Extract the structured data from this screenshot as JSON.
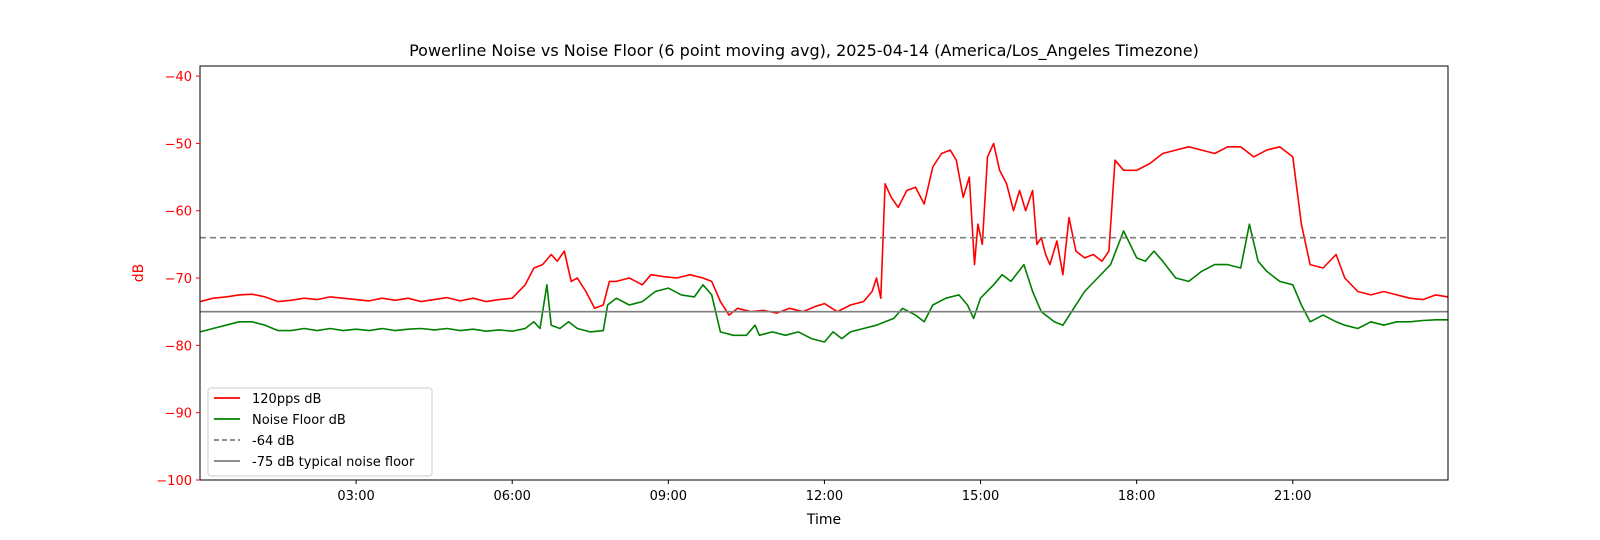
{
  "chart_data": {
    "type": "line",
    "title": "Powerline Noise vs Noise Floor (6 point moving avg), 2025-04-14 (America/Los_Angeles Timezone)",
    "xlabel": "Time",
    "ylabel": "dB",
    "xlim": [
      "00:00",
      "23:59"
    ],
    "ylim": [
      -100,
      -38.5
    ],
    "x_ticks": [
      "03:00",
      "06:00",
      "09:00",
      "12:00",
      "15:00",
      "18:00",
      "21:00"
    ],
    "y_ticks": [
      -40,
      -50,
      -60,
      -70,
      -80,
      -90,
      -100
    ],
    "grid": false,
    "legend_position": "lower-left",
    "colors": {
      "signal": "#ff0000",
      "noise_floor": "#008000",
      "threshold": "#7f7f7f",
      "typical_floor": "#7f7f7f",
      "ylabel_and_ticks": "#ff0000"
    },
    "series": [
      {
        "name": "120pps dB",
        "color": "#ff0000",
        "points": [
          [
            "00:00",
            -73.5
          ],
          [
            "00:15",
            -73.0
          ],
          [
            "00:30",
            -72.8
          ],
          [
            "00:45",
            -72.5
          ],
          [
            "01:00",
            -72.4
          ],
          [
            "01:15",
            -72.8
          ],
          [
            "01:30",
            -73.5
          ],
          [
            "01:45",
            -73.3
          ],
          [
            "02:00",
            -73.0
          ],
          [
            "02:15",
            -73.2
          ],
          [
            "02:30",
            -72.8
          ],
          [
            "02:45",
            -73.0
          ],
          [
            "03:00",
            -73.2
          ],
          [
            "03:15",
            -73.4
          ],
          [
            "03:30",
            -73.0
          ],
          [
            "03:45",
            -73.3
          ],
          [
            "04:00",
            -73.0
          ],
          [
            "04:15",
            -73.5
          ],
          [
            "04:30",
            -73.2
          ],
          [
            "04:45",
            -72.9
          ],
          [
            "05:00",
            -73.4
          ],
          [
            "05:15",
            -73.0
          ],
          [
            "05:30",
            -73.5
          ],
          [
            "05:45",
            -73.2
          ],
          [
            "06:00",
            -73.0
          ],
          [
            "06:15",
            -71.0
          ],
          [
            "06:25",
            -68.5
          ],
          [
            "06:35",
            -68.0
          ],
          [
            "06:45",
            -66.5
          ],
          [
            "06:52",
            -67.5
          ],
          [
            "07:00",
            -66.0
          ],
          [
            "07:08",
            -70.5
          ],
          [
            "07:15",
            -70.0
          ],
          [
            "07:25",
            -72.0
          ],
          [
            "07:35",
            -74.5
          ],
          [
            "07:45",
            -74.0
          ],
          [
            "07:52",
            -70.5
          ],
          [
            "08:00",
            -70.5
          ],
          [
            "08:15",
            -70.0
          ],
          [
            "08:30",
            -71.0
          ],
          [
            "08:40",
            -69.5
          ],
          [
            "08:55",
            -69.8
          ],
          [
            "09:10",
            -70.0
          ],
          [
            "09:25",
            -69.5
          ],
          [
            "09:40",
            -70.0
          ],
          [
            "09:50",
            -70.5
          ],
          [
            "10:00",
            -73.5
          ],
          [
            "10:10",
            -75.5
          ],
          [
            "10:20",
            -74.5
          ],
          [
            "10:35",
            -75.0
          ],
          [
            "10:50",
            -74.8
          ],
          [
            "11:05",
            -75.2
          ],
          [
            "11:20",
            -74.5
          ],
          [
            "11:35",
            -75.0
          ],
          [
            "11:50",
            -74.2
          ],
          [
            "12:00",
            -73.8
          ],
          [
            "12:15",
            -75.0
          ],
          [
            "12:30",
            -74.0
          ],
          [
            "12:45",
            -73.5
          ],
          [
            "12:55",
            -72.0
          ],
          [
            "13:00",
            -70.0
          ],
          [
            "13:05",
            -73.0
          ],
          [
            "13:10",
            -56.0
          ],
          [
            "13:17",
            -58.0
          ],
          [
            "13:25",
            -59.5
          ],
          [
            "13:35",
            -57.0
          ],
          [
            "13:45",
            -56.5
          ],
          [
            "13:55",
            -59.0
          ],
          [
            "14:05",
            -53.5
          ],
          [
            "14:15",
            -51.5
          ],
          [
            "14:25",
            -51.0
          ],
          [
            "14:32",
            -52.5
          ],
          [
            "14:40",
            -58.0
          ],
          [
            "14:47",
            -55.0
          ],
          [
            "14:53",
            -68.0
          ],
          [
            "14:57",
            -62.0
          ],
          [
            "15:02",
            -65.0
          ],
          [
            "15:08",
            -52.0
          ],
          [
            "15:15",
            -50.0
          ],
          [
            "15:22",
            -54.0
          ],
          [
            "15:30",
            -56.0
          ],
          [
            "15:38",
            -60.0
          ],
          [
            "15:45",
            -57.0
          ],
          [
            "15:52",
            -60.0
          ],
          [
            "16:00",
            -57.0
          ],
          [
            "16:05",
            -65.0
          ],
          [
            "16:10",
            -64.0
          ],
          [
            "16:15",
            -66.5
          ],
          [
            "16:20",
            -68.0
          ],
          [
            "16:28",
            -64.5
          ],
          [
            "16:35",
            -69.5
          ],
          [
            "16:42",
            -61.0
          ],
          [
            "16:50",
            -66.0
          ],
          [
            "17:00",
            -67.0
          ],
          [
            "17:10",
            -66.5
          ],
          [
            "17:20",
            -67.5
          ],
          [
            "17:28",
            -66.0
          ],
          [
            "17:35",
            -52.5
          ],
          [
            "17:45",
            -54.0
          ],
          [
            "18:00",
            -54.0
          ],
          [
            "18:15",
            -53.0
          ],
          [
            "18:30",
            -51.5
          ],
          [
            "18:45",
            -51.0
          ],
          [
            "19:00",
            -50.5
          ],
          [
            "19:15",
            -51.0
          ],
          [
            "19:30",
            -51.5
          ],
          [
            "19:45",
            -50.5
          ],
          [
            "20:00",
            -50.5
          ],
          [
            "20:15",
            -52.0
          ],
          [
            "20:30",
            -51.0
          ],
          [
            "20:45",
            -50.5
          ],
          [
            "21:00",
            -52.0
          ],
          [
            "21:10",
            -62.0
          ],
          [
            "21:20",
            -68.0
          ],
          [
            "21:35",
            -68.5
          ],
          [
            "21:50",
            -66.5
          ],
          [
            "22:00",
            -70.0
          ],
          [
            "22:15",
            -72.0
          ],
          [
            "22:30",
            -72.5
          ],
          [
            "22:45",
            -72.0
          ],
          [
            "23:00",
            -72.5
          ],
          [
            "23:15",
            -73.0
          ],
          [
            "23:30",
            -73.2
          ],
          [
            "23:45",
            -72.5
          ],
          [
            "23:59",
            -72.8
          ]
        ]
      },
      {
        "name": "Noise Floor dB",
        "color": "#008000",
        "points": [
          [
            "00:00",
            -78.0
          ],
          [
            "00:15",
            -77.5
          ],
          [
            "00:30",
            -77.0
          ],
          [
            "00:45",
            -76.5
          ],
          [
            "01:00",
            -76.5
          ],
          [
            "01:15",
            -77.0
          ],
          [
            "01:30",
            -77.8
          ],
          [
            "01:45",
            -77.8
          ],
          [
            "02:00",
            -77.5
          ],
          [
            "02:15",
            -77.8
          ],
          [
            "02:30",
            -77.5
          ],
          [
            "02:45",
            -77.8
          ],
          [
            "03:00",
            -77.6
          ],
          [
            "03:15",
            -77.8
          ],
          [
            "03:30",
            -77.5
          ],
          [
            "03:45",
            -77.8
          ],
          [
            "04:00",
            -77.6
          ],
          [
            "04:15",
            -77.5
          ],
          [
            "04:30",
            -77.7
          ],
          [
            "04:45",
            -77.5
          ],
          [
            "05:00",
            -77.8
          ],
          [
            "05:15",
            -77.6
          ],
          [
            "05:30",
            -77.9
          ],
          [
            "05:45",
            -77.7
          ],
          [
            "06:00",
            -77.9
          ],
          [
            "06:15",
            -77.5
          ],
          [
            "06:25",
            -76.5
          ],
          [
            "06:32",
            -77.5
          ],
          [
            "06:40",
            -71.0
          ],
          [
            "06:45",
            -77.0
          ],
          [
            "06:55",
            -77.5
          ],
          [
            "07:05",
            -76.5
          ],
          [
            "07:15",
            -77.5
          ],
          [
            "07:30",
            -78.0
          ],
          [
            "07:45",
            -77.8
          ],
          [
            "07:50",
            -74.0
          ],
          [
            "08:00",
            -73.0
          ],
          [
            "08:15",
            -74.0
          ],
          [
            "08:30",
            -73.5
          ],
          [
            "08:45",
            -72.0
          ],
          [
            "09:00",
            -71.5
          ],
          [
            "09:15",
            -72.5
          ],
          [
            "09:30",
            -72.8
          ],
          [
            "09:40",
            -71.0
          ],
          [
            "09:50",
            -72.5
          ],
          [
            "10:00",
            -78.0
          ],
          [
            "10:15",
            -78.5
          ],
          [
            "10:30",
            -78.5
          ],
          [
            "10:40",
            -77.0
          ],
          [
            "10:45",
            -78.5
          ],
          [
            "11:00",
            -78.0
          ],
          [
            "11:15",
            -78.5
          ],
          [
            "11:30",
            -78.0
          ],
          [
            "11:45",
            -79.0
          ],
          [
            "12:00",
            -79.5
          ],
          [
            "12:10",
            -78.0
          ],
          [
            "12:20",
            -79.0
          ],
          [
            "12:30",
            -78.0
          ],
          [
            "12:45",
            -77.5
          ],
          [
            "13:00",
            -77.0
          ],
          [
            "13:10",
            -76.5
          ],
          [
            "13:20",
            -76.0
          ],
          [
            "13:30",
            -74.5
          ],
          [
            "13:45",
            -75.5
          ],
          [
            "13:55",
            -76.5
          ],
          [
            "14:05",
            -74.0
          ],
          [
            "14:20",
            -73.0
          ],
          [
            "14:35",
            -72.5
          ],
          [
            "14:45",
            -74.0
          ],
          [
            "14:52",
            -76.0
          ],
          [
            "15:00",
            -73.0
          ],
          [
            "15:15",
            -71.0
          ],
          [
            "15:25",
            -69.5
          ],
          [
            "15:35",
            -70.5
          ],
          [
            "15:50",
            -68.0
          ],
          [
            "16:00",
            -72.0
          ],
          [
            "16:10",
            -75.0
          ],
          [
            "16:25",
            -76.5
          ],
          [
            "16:35",
            -77.0
          ],
          [
            "16:45",
            -75.0
          ],
          [
            "17:00",
            -72.0
          ],
          [
            "17:15",
            -70.0
          ],
          [
            "17:30",
            -68.0
          ],
          [
            "17:45",
            -63.0
          ],
          [
            "18:00",
            -67.0
          ],
          [
            "18:10",
            -67.5
          ],
          [
            "18:20",
            -66.0
          ],
          [
            "18:30",
            -67.5
          ],
          [
            "18:45",
            -70.0
          ],
          [
            "19:00",
            -70.5
          ],
          [
            "19:15",
            -69.0
          ],
          [
            "19:30",
            -68.0
          ],
          [
            "19:45",
            -68.0
          ],
          [
            "20:00",
            -68.5
          ],
          [
            "20:10",
            -62.0
          ],
          [
            "20:20",
            -67.5
          ],
          [
            "20:30",
            -69.0
          ],
          [
            "20:45",
            -70.5
          ],
          [
            "21:00",
            -71.0
          ],
          [
            "21:10",
            -74.0
          ],
          [
            "21:20",
            -76.5
          ],
          [
            "21:35",
            -75.5
          ],
          [
            "21:50",
            -76.5
          ],
          [
            "22:00",
            -77.0
          ],
          [
            "22:15",
            -77.5
          ],
          [
            "22:30",
            -76.5
          ],
          [
            "22:45",
            -77.0
          ],
          [
            "23:00",
            -76.5
          ],
          [
            "23:15",
            -76.5
          ],
          [
            "23:30",
            -76.3
          ],
          [
            "23:45",
            -76.2
          ],
          [
            "23:59",
            -76.2
          ]
        ]
      },
      {
        "name": "-64 dB",
        "color": "#7f7f7f",
        "style": "dashed",
        "constant": -64
      },
      {
        "name": "-75 dB typical noise floor",
        "color": "#7f7f7f",
        "style": "solid",
        "constant": -75
      }
    ]
  }
}
